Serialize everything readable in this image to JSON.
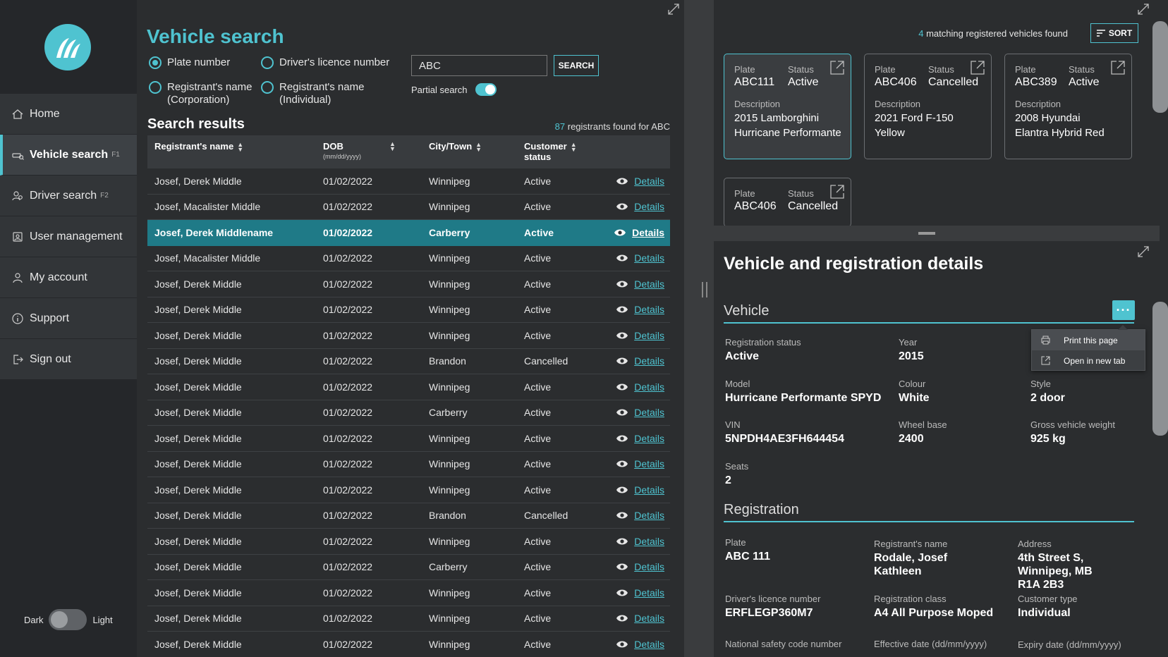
{
  "sidebar": {
    "items": [
      {
        "label": "Home",
        "key": ""
      },
      {
        "label": "Vehicle search",
        "key": "F1"
      },
      {
        "label": "Driver search",
        "key": "F2"
      },
      {
        "label": "User management",
        "key": ""
      },
      {
        "label": "My account",
        "key": ""
      },
      {
        "label": "Support",
        "key": ""
      },
      {
        "label": "Sign out",
        "key": ""
      }
    ],
    "theme": {
      "dark": "Dark",
      "light": "Light"
    }
  },
  "search": {
    "title": "Vehicle search",
    "options": [
      "Plate number",
      "Driver's licence number",
      "Registrant's name (Corporation)",
      "Registrant's name (Individual)"
    ],
    "value": "ABC",
    "button": "SEARCH",
    "partial": "Partial search"
  },
  "results": {
    "title": "Search results",
    "count": "87",
    "count_text": " registrants found for ABC",
    "headers": {
      "name": "Registrant's name",
      "dob": "DOB",
      "dob_fmt": "(mm/dd/yyyy)",
      "city": "City/Town",
      "status": "Customer",
      "status2": "status"
    },
    "details_label": "Details",
    "rows": [
      [
        "Josef, Derek Middle",
        "01/02/2022",
        "Winnipeg",
        "Active"
      ],
      [
        "Josef, Macalister Middle",
        "01/02/2022",
        "Winnipeg",
        "Active"
      ],
      [
        "Josef, Derek Middlename",
        "01/02/2022",
        "Carberry",
        "Active"
      ],
      [
        "Josef, Macalister Middle",
        "01/02/2022",
        "Winnipeg",
        "Active"
      ],
      [
        "Josef, Derek Middle",
        "01/02/2022",
        "Winnipeg",
        "Active"
      ],
      [
        "Josef, Derek Middle",
        "01/02/2022",
        "Winnipeg",
        "Active"
      ],
      [
        "Josef, Derek Middle",
        "01/02/2022",
        "Winnipeg",
        "Active"
      ],
      [
        "Josef, Derek Middle",
        "01/02/2022",
        "Brandon",
        "Cancelled"
      ],
      [
        "Josef, Derek Middle",
        "01/02/2022",
        "Winnipeg",
        "Active"
      ],
      [
        "Josef, Derek Middle",
        "01/02/2022",
        "Carberry",
        "Active"
      ],
      [
        "Josef, Derek Middle",
        "01/02/2022",
        "Winnipeg",
        "Active"
      ],
      [
        "Josef, Derek Middle",
        "01/02/2022",
        "Winnipeg",
        "Active"
      ],
      [
        "Josef, Derek Middle",
        "01/02/2022",
        "Winnipeg",
        "Active"
      ],
      [
        "Josef, Derek Middle",
        "01/02/2022",
        "Brandon",
        "Cancelled"
      ],
      [
        "Josef, Derek Middle",
        "01/02/2022",
        "Winnipeg",
        "Active"
      ],
      [
        "Josef, Derek Middle",
        "01/02/2022",
        "Carberry",
        "Active"
      ],
      [
        "Josef, Derek Middle",
        "01/02/2022",
        "Winnipeg",
        "Active"
      ],
      [
        "Josef, Derek Middle",
        "01/02/2022",
        "Winnipeg",
        "Active"
      ],
      [
        "Josef, Derek Middle",
        "01/02/2022",
        "Winnipeg",
        "Active"
      ]
    ],
    "selected_row": 2
  },
  "vehicles": {
    "count": "4",
    "count_text": " matching registered vehicles found",
    "sort": "SORT",
    "labels": {
      "plate": "Plate",
      "status": "Status",
      "description": "Description"
    },
    "cards": [
      {
        "plate": "ABC111",
        "status": "Active",
        "desc1": "2015 Lamborghini",
        "desc2": "Hurricane Performante"
      },
      {
        "plate": "ABC406",
        "status": "Cancelled",
        "desc1": "2021 Ford F-150",
        "desc2": "Yellow"
      },
      {
        "plate": "ABC389",
        "status": "Active",
        "desc1": "2008 Hyundai",
        "desc2": "Elantra Hybrid Red"
      },
      {
        "plate": "ABC406",
        "status": "Cancelled"
      }
    ]
  },
  "details": {
    "title": "Vehicle and registration details",
    "vehicle_section": "Vehicle",
    "registration_section": "Registration",
    "menu": {
      "print": "Print this page",
      "open": "Open in new tab"
    },
    "vehicle": {
      "reg_status": {
        "label": "Registration status",
        "value": "Active"
      },
      "year": {
        "label": "Year",
        "value": "2015"
      },
      "model": {
        "label": "Model",
        "value": "Hurricane Performante SPYD"
      },
      "colour": {
        "label": "Colour",
        "value": "White"
      },
      "style": {
        "label": "Style",
        "value": "2 door"
      },
      "vin": {
        "label": "VIN",
        "value": "5NPDH4AE3FH644454"
      },
      "wheelbase": {
        "label": "Wheel base",
        "value": "2400"
      },
      "gvw": {
        "label": "Gross vehicle weight",
        "value": "925 kg"
      },
      "seats": {
        "label": "Seats",
        "value": "2"
      }
    },
    "registration": {
      "plate": {
        "label": "Plate",
        "value": "ABC 111"
      },
      "registrant": {
        "label": "Registrant's name",
        "value1": "Rodale, Josef",
        "value2": "Kathleen"
      },
      "address": {
        "label": "Address",
        "value1": "4th Street S,",
        "value2": "Winnipeg, MB",
        "value3": "R1A 2B3"
      },
      "licence": {
        "label": "Driver's licence number",
        "value": "ERFLEGP360M7"
      },
      "class": {
        "label": "Registration class",
        "value": "A4 All Purpose Moped"
      },
      "ctype": {
        "label": "Customer type",
        "value": "Individual"
      },
      "nsc": {
        "label": "National safety code number"
      },
      "effective": {
        "label": "Effective date (dd/mm/yyyy)"
      },
      "expiry": {
        "label": "Expiry date (dd/mm/yyyy)"
      }
    }
  },
  "colors": {
    "accent": "#4fc3d0",
    "selected_row": "#1f7a87",
    "background": "#2b2d2f"
  }
}
